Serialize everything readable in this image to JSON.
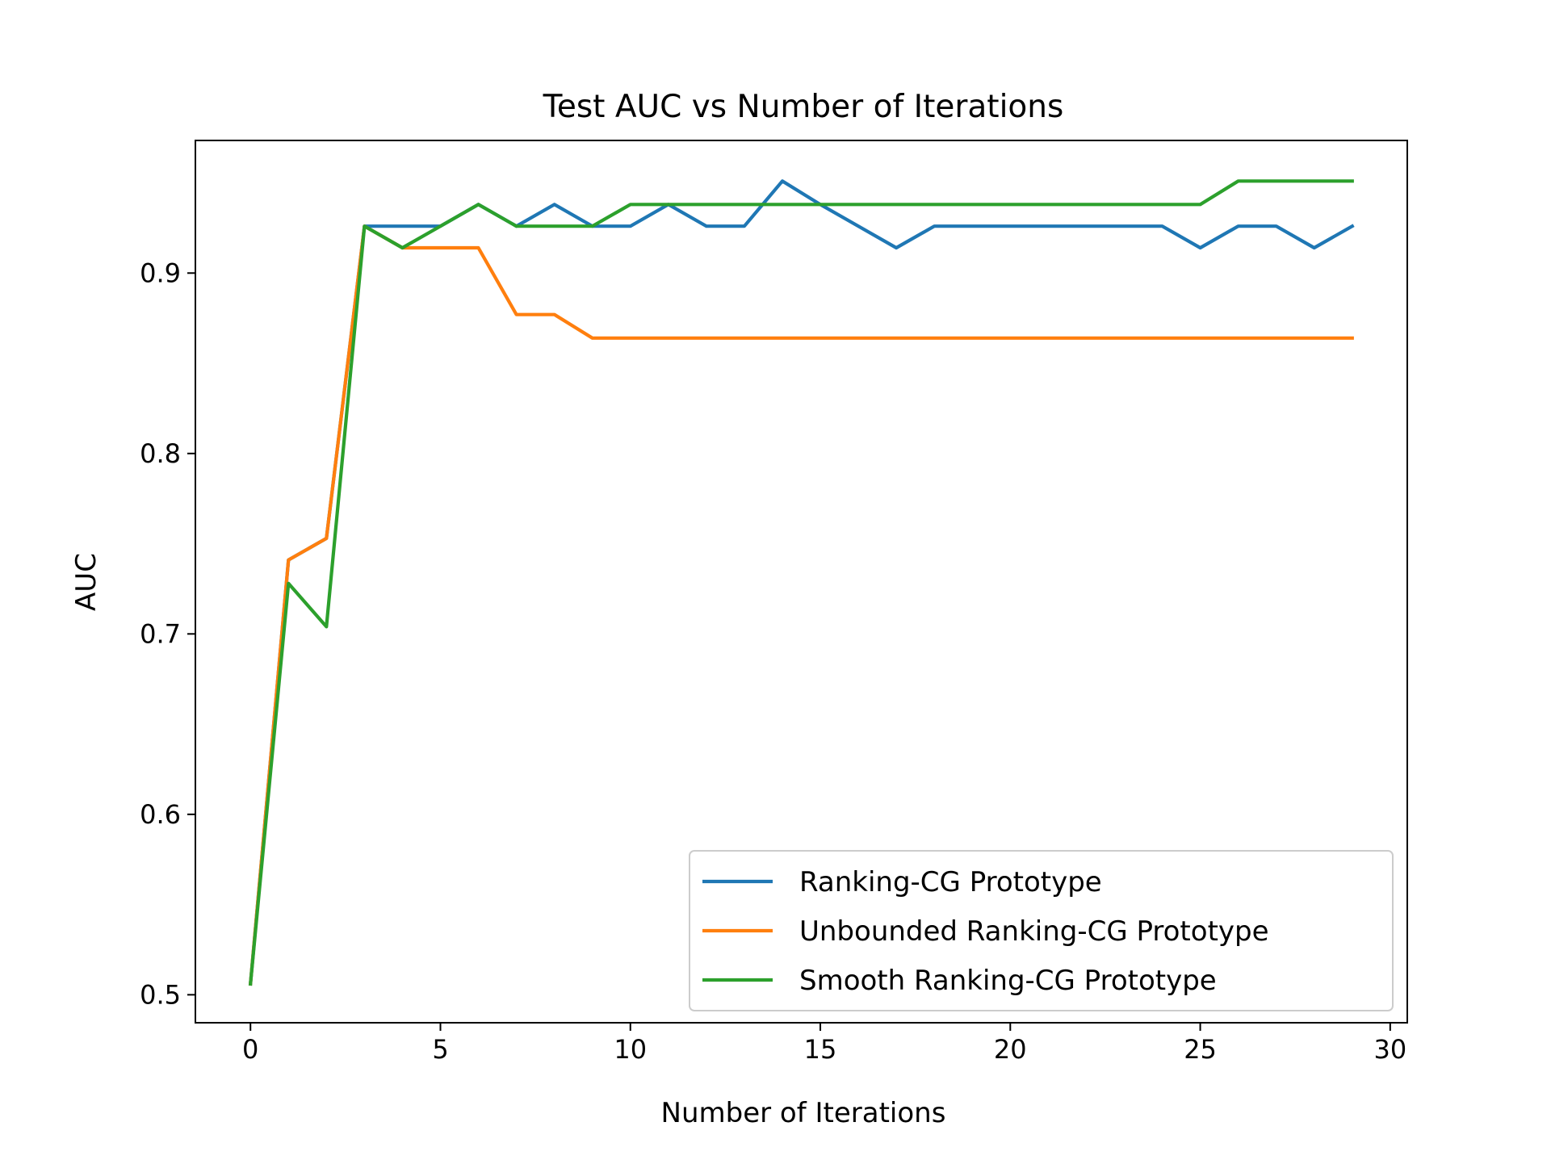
{
  "chart_data": {
    "type": "line",
    "title": "Test AUC vs Number of Iterations",
    "xlabel": "Number of Iterations",
    "ylabel": "AUC",
    "xlim": [
      -1.45,
      30.45
    ],
    "ylim": [
      0.4845,
      0.9735
    ],
    "xticks": [
      0,
      5,
      10,
      15,
      20,
      25,
      30
    ],
    "yticks": [
      0.5,
      0.6,
      0.7,
      0.8,
      0.9
    ],
    "xtick_labels": [
      "0",
      "5",
      "10",
      "15",
      "20",
      "25",
      "30"
    ],
    "ytick_labels": [
      "0.5",
      "0.6",
      "0.7",
      "0.8",
      "0.9"
    ],
    "grid": false,
    "legend_position": "lower-right",
    "x": [
      0,
      1,
      2,
      3,
      4,
      5,
      6,
      7,
      8,
      9,
      10,
      11,
      12,
      13,
      14,
      15,
      16,
      17,
      18,
      19,
      20,
      21,
      22,
      23,
      24,
      25,
      26,
      27,
      28,
      29
    ],
    "series": [
      {
        "name": "Ranking-CG Prototype",
        "color": "#1f77b4",
        "values": [
          0.506,
          0.741,
          0.753,
          0.926,
          0.926,
          0.926,
          0.938,
          0.926,
          0.938,
          0.926,
          0.926,
          0.938,
          0.926,
          0.926,
          0.951,
          0.938,
          0.926,
          0.914,
          0.926,
          0.926,
          0.926,
          0.926,
          0.926,
          0.926,
          0.926,
          0.914,
          0.926,
          0.926,
          0.914,
          0.926
        ]
      },
      {
        "name": "Unbounded Ranking-CG Prototype",
        "color": "#ff7f0e",
        "values": [
          0.506,
          0.741,
          0.753,
          0.926,
          0.914,
          0.914,
          0.914,
          0.877,
          0.877,
          0.864,
          0.864,
          0.864,
          0.864,
          0.864,
          0.864,
          0.864,
          0.864,
          0.864,
          0.864,
          0.864,
          0.864,
          0.864,
          0.864,
          0.864,
          0.864,
          0.864,
          0.864,
          0.864,
          0.864,
          0.864
        ]
      },
      {
        "name": "Smooth Ranking-CG Prototype",
        "color": "#2ca02c",
        "values": [
          0.506,
          0.728,
          0.704,
          0.926,
          0.914,
          0.926,
          0.938,
          0.926,
          0.926,
          0.926,
          0.938,
          0.938,
          0.938,
          0.938,
          0.938,
          0.938,
          0.938,
          0.938,
          0.938,
          0.938,
          0.938,
          0.938,
          0.938,
          0.938,
          0.938,
          0.938,
          0.951,
          0.951,
          0.951,
          0.951
        ]
      }
    ]
  }
}
